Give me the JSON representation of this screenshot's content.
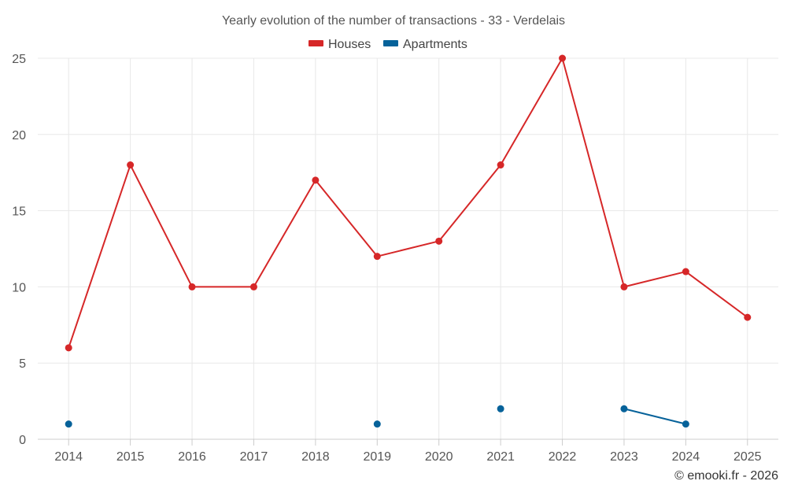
{
  "chart_data": {
    "type": "line",
    "title": "Yearly evolution of the number of transactions - 33 - Verdelais",
    "categories": [
      "2014",
      "2015",
      "2016",
      "2017",
      "2018",
      "2019",
      "2020",
      "2021",
      "2022",
      "2023",
      "2024",
      "2025"
    ],
    "series": [
      {
        "name": "Houses",
        "color": "#d62728",
        "values": [
          6,
          18,
          10,
          10,
          17,
          12,
          13,
          18,
          25,
          10,
          11,
          8
        ]
      },
      {
        "name": "Apartments",
        "color": "#06629a",
        "values": [
          1,
          null,
          null,
          null,
          null,
          1,
          null,
          2,
          null,
          2,
          1,
          null
        ]
      }
    ],
    "xlabel": "",
    "ylabel": "",
    "ylim": [
      0,
      25
    ],
    "yticks": [
      0,
      5,
      10,
      15,
      20,
      25
    ],
    "grid": true,
    "legend_position": "top-center"
  },
  "credit": "© emooki.fr - 2026"
}
